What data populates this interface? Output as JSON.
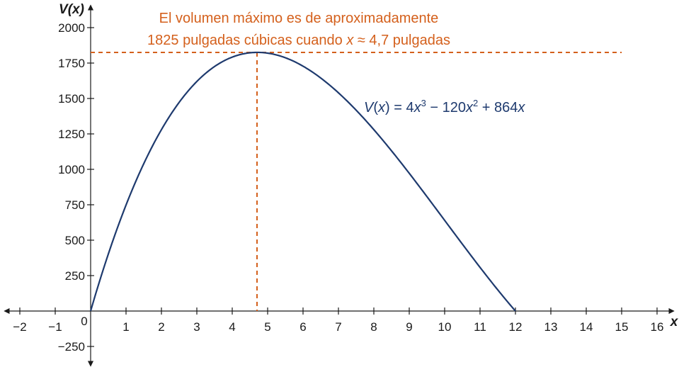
{
  "chart_data": {
    "type": "line",
    "xlabel": "x",
    "ylabel": "V(x)",
    "xlim": [
      -2.5,
      16.5
    ],
    "ylim": [
      -390,
      2170
    ],
    "x_ticks": [
      -2,
      -1,
      1,
      2,
      3,
      4,
      5,
      6,
      7,
      8,
      9,
      10,
      11,
      12,
      13,
      14,
      15,
      16
    ],
    "x_tick_labels": [
      "−2",
      "−1",
      "1",
      "2",
      "3",
      "4",
      "5",
      "6",
      "7",
      "8",
      "9",
      "10",
      "11",
      "12",
      "13",
      "14",
      "15",
      "16"
    ],
    "y_ticks": [
      -250,
      250,
      500,
      750,
      1000,
      1250,
      1500,
      1750,
      2000
    ],
    "y_tick_labels": [
      "−250",
      "250",
      "500",
      "750",
      "1000",
      "1250",
      "1500",
      "1750",
      "2000"
    ],
    "origin_label": "0",
    "grid": false,
    "series": [
      {
        "formula": "V(x) = 4x^3 - 120x^2 + 864x",
        "coefficients": {
          "x3": 4,
          "x2": -120,
          "x1": 864
        },
        "domain": [
          0,
          12
        ],
        "color": "#1e3a6e"
      }
    ],
    "reference_lines": {
      "horizontal_y": 1825,
      "horizontal_x_range": [
        0,
        15
      ],
      "vertical_x": 4.7,
      "color": "#d4601c"
    },
    "annotation": {
      "line1": "El volumen máximo es de aproximadamente",
      "line2_prefix": "1825 pulgadas cúbicas cuando ",
      "line2_var": "x",
      "line2_suffix": " ≈ 4,7 pulgadas",
      "color": "#d4601c"
    },
    "equation_label": {
      "v": "V",
      "open": "(",
      "x": "x",
      "close": ") = 4",
      "x2": "x",
      "exp3": "3",
      "mid": " − 120",
      "x3": "x",
      "exp2": "2",
      "end": " + 864",
      "x4": "x",
      "color": "#1e3a6e"
    }
  }
}
